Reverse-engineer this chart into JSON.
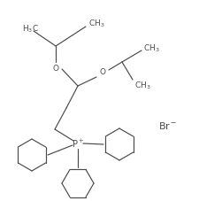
{
  "bg_color": "#ffffff",
  "line_color": "#4a4a4a",
  "text_color": "#4a4a4a",
  "font_size": 6.5,
  "lw": 0.85
}
